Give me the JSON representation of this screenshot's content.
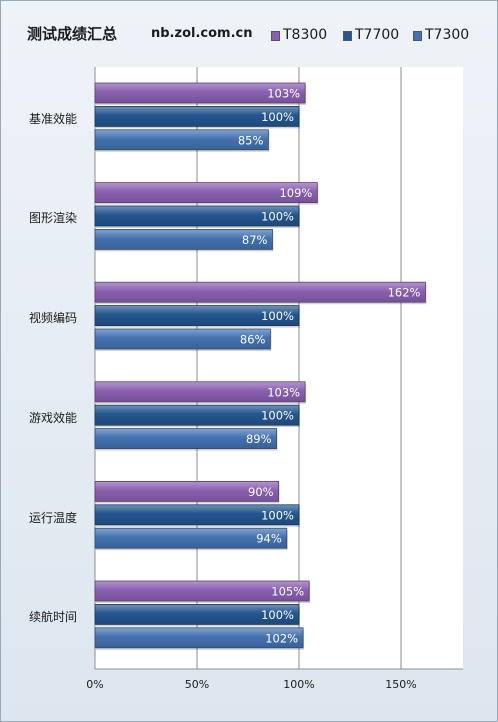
{
  "chart_data": {
    "type": "bar",
    "orientation": "horizontal",
    "title": "测试成绩汇总",
    "source": "nb.zol.com.cn",
    "categories": [
      "基准效能",
      "图形渲染",
      "视频编码",
      "游戏效能",
      "运行温度",
      "续航时间"
    ],
    "series": [
      {
        "name": "T8300",
        "values": [
          103,
          109,
          162,
          103,
          90,
          105
        ],
        "color": "#8a5fb0"
      },
      {
        "name": "T7700",
        "values": [
          100,
          100,
          100,
          100,
          100,
          100
        ],
        "color": "#24568f"
      },
      {
        "name": "T7300",
        "values": [
          85,
          87,
          86,
          89,
          94,
          102
        ],
        "color": "#4472b0"
      }
    ],
    "x_ticks": [
      "0%",
      "50%",
      "100%",
      "150%"
    ],
    "x_tick_values": [
      0,
      50,
      100,
      150
    ],
    "xlim": [
      0,
      190
    ],
    "value_suffix": "%",
    "grid": true,
    "legend_position": "top-right"
  }
}
